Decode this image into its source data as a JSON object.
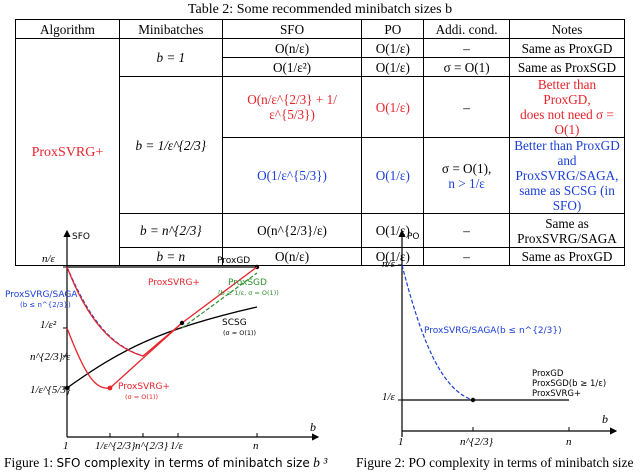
{
  "table": {
    "caption": "Table 2: Some recommended minibatch sizes b",
    "headers": [
      "Algorithm",
      "Minibatches",
      "SFO",
      "PO",
      "Addi. cond.",
      "Notes"
    ],
    "algorithm": "ProxSVRG+",
    "rows": [
      {
        "minibatch": "b = 1",
        "sfo": "O(n/ε)",
        "po": "O(1/ε)",
        "cond": "–",
        "notes": "Same as ProxGD"
      },
      {
        "minibatch": "",
        "sfo": "O(1/ε²)",
        "po": "O(1/ε)",
        "cond": "σ = O(1)",
        "notes": "Same as ProxSGD"
      },
      {
        "minibatch": "b = 1/ε^{2/3}",
        "sfo": "O(n/ε^{2/3} + 1/ε^{5/3})",
        "po": "O(1/ε)",
        "cond": "–",
        "notes_1": "Better than ProxGD,",
        "notes_2": "does not need σ = O(1)"
      },
      {
        "minibatch": "",
        "sfo": "O(1/ε^{5/3})",
        "po": "O(1/ε)",
        "cond_1": "σ = O(1),",
        "cond_2": "n > 1/ε",
        "notes_1": "Better than ProxGD and",
        "notes_2": "ProxSVRG/SAGA,",
        "notes_3": "same as SCSG (in SFO)"
      },
      {
        "minibatch": "b = n^{2/3}",
        "sfo": "O(n^{2/3}/ε)",
        "po": "O(1/ε)",
        "cond": "–",
        "notes_1": "Same as",
        "notes_2": "ProxSVRG/SAGA"
      },
      {
        "minibatch": "b = n",
        "sfo": "O(n/ε)",
        "po": "O(1/ε)",
        "cond": "–",
        "notes": "Same as ProxGD"
      }
    ]
  },
  "figure1": {
    "y_axis_title": "SFO",
    "x_axis_title": "b",
    "y_ticks": [
      "n/ε",
      "1/ε²",
      "n^{2/3}/ε",
      "1/ε^{5/3}"
    ],
    "x_ticks": [
      "1",
      "1/ε^{2/3}",
      "n^{2/3}",
      "1/ε",
      "n"
    ],
    "labels": {
      "proxgd": "ProxGD",
      "proxsvrg_plus": "ProxSVRG+",
      "proxsgd": "ProxSGD",
      "proxsgd_cond": "(b ≥ 1/ε, σ = O(1))",
      "proxsvrg_saga": "ProxSVRG/SAGA",
      "proxsvrg_saga_cond": "(b ≤ n^{2/3})",
      "scsg": "SCSG",
      "scsg_cond": "(σ = O(1))",
      "proxsvrg_plus_lower": "ProxSVRG+",
      "proxsvrg_plus_lower_cond": "(σ = O(1))"
    },
    "caption_prefix": "Figure 1:",
    "caption_text": "SFO complexity in terms of minibatch size",
    "caption_suffix": "b ³",
    "colors": {
      "red": "#e8232a",
      "blue": "#1a3fd8",
      "green": "#2f8f2f",
      "black": "#000000"
    }
  },
  "figure2": {
    "y_axis_title": "PO",
    "x_axis_title": "b",
    "y_ticks": [
      "n/ε",
      "1/ε"
    ],
    "x_ticks": [
      "1",
      "n^{2/3}",
      "n"
    ],
    "labels": {
      "proxsvrg_saga": "ProxSVRG/SAGA(b ≤ n^{2/3})",
      "proxgd": "ProxGD",
      "proxsgd": "ProxSGD(b ≥ 1/ε)",
      "proxsvrg_plus": "ProxSVRG+"
    },
    "caption_prefix": "Figure 2:",
    "caption_text": "PO complexity in terms of minibatch size"
  }
}
